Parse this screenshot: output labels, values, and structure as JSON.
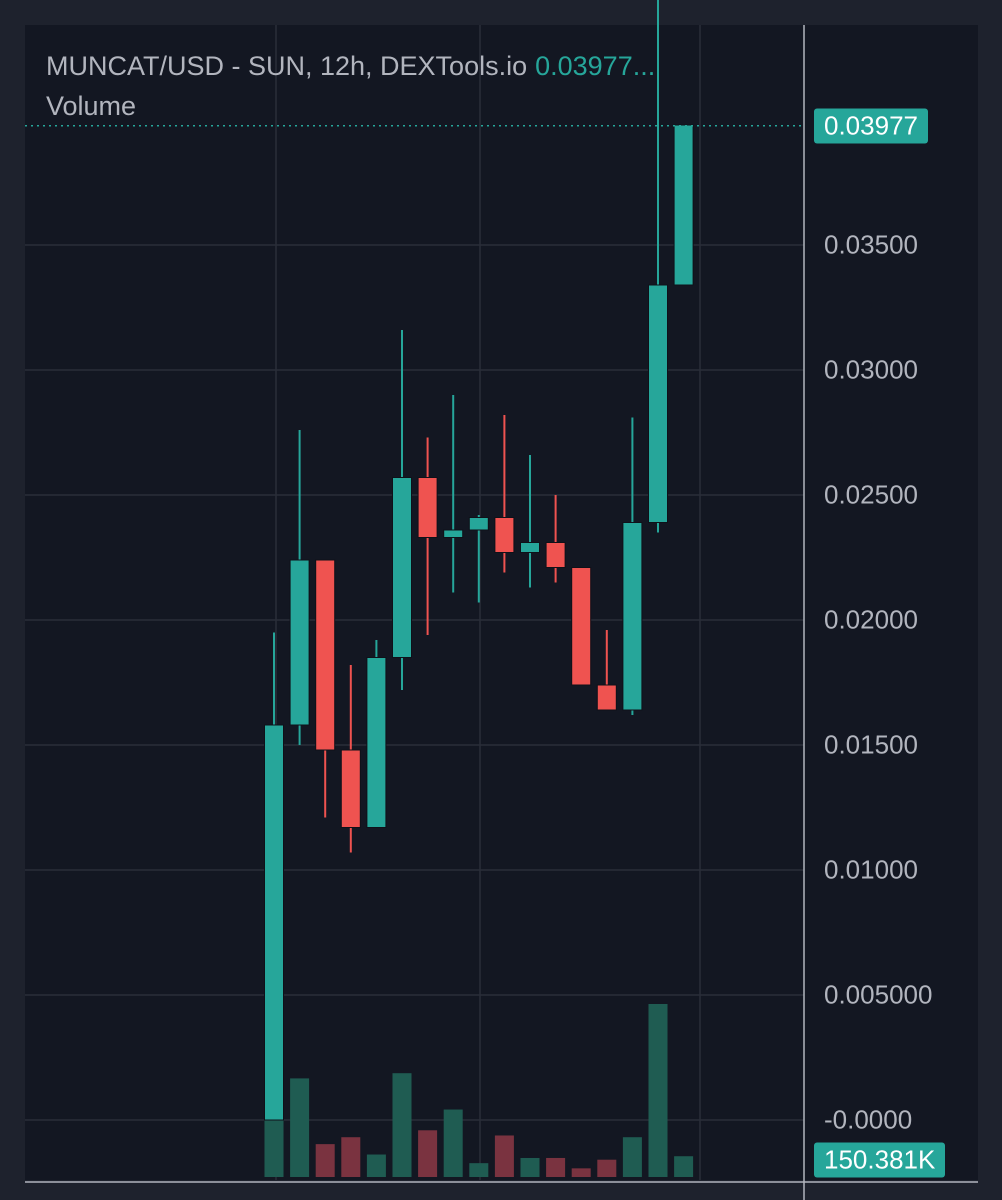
{
  "header": {
    "title": "MUNCAT/USD - SUN, 12h, DEXTools.io",
    "last_price_display": "0.03977...",
    "volume_label": "Volume"
  },
  "colors": {
    "background": "#131722",
    "frame": "#1e222d",
    "up": "#26a69a",
    "down": "#ef5350",
    "volume_up": "#1f5c52",
    "volume_down": "#7a3340",
    "grid": "#2a2e39",
    "text": "#b2b5be"
  },
  "price_badge": "0.03977",
  "volume_badge": "150.381K",
  "chart_data": {
    "type": "candlestick",
    "title": "MUNCAT/USD - SUN, 12h, DEXTools.io",
    "ylabel": "",
    "ylim": [
      -0.0012,
      0.0448
    ],
    "y_ticks": [
      {
        "value": 0.035,
        "label": "0.03500"
      },
      {
        "value": 0.03,
        "label": "0.03000"
      },
      {
        "value": 0.025,
        "label": "0.02500"
      },
      {
        "value": 0.02,
        "label": "0.02000"
      },
      {
        "value": 0.015,
        "label": "0.01500"
      },
      {
        "value": 0.01,
        "label": "0.01000"
      },
      {
        "value": 0.005,
        "label": "0.005000"
      },
      {
        "value": 0.0,
        "label": "-0.0000"
      }
    ],
    "last_price": 0.03977,
    "grid": true,
    "candles": [
      {
        "open": 0.0,
        "high": 0.0195,
        "low": 0.0,
        "close": 0.0158,
        "volume": 0.42
      },
      {
        "open": 0.0158,
        "high": 0.0276,
        "low": 0.015,
        "close": 0.0224,
        "volume": 0.57
      },
      {
        "open": 0.0224,
        "high": 0.0224,
        "low": 0.0121,
        "close": 0.0148,
        "volume": 0.19
      },
      {
        "open": 0.0148,
        "high": 0.0182,
        "low": 0.0107,
        "close": 0.0117,
        "volume": 0.23
      },
      {
        "open": 0.0117,
        "high": 0.0192,
        "low": 0.0117,
        "close": 0.0185,
        "volume": 0.13
      },
      {
        "open": 0.0185,
        "high": 0.0316,
        "low": 0.0172,
        "close": 0.0257,
        "volume": 0.6
      },
      {
        "open": 0.0257,
        "high": 0.0273,
        "low": 0.0194,
        "close": 0.0233,
        "volume": 0.27
      },
      {
        "open": 0.0233,
        "high": 0.029,
        "low": 0.0211,
        "close": 0.0236,
        "volume": 0.39
      },
      {
        "open": 0.0236,
        "high": 0.0242,
        "low": 0.0207,
        "close": 0.0241,
        "volume": 0.08
      },
      {
        "open": 0.0241,
        "high": 0.0282,
        "low": 0.0219,
        "close": 0.0227,
        "volume": 0.24
      },
      {
        "open": 0.0227,
        "high": 0.0266,
        "low": 0.0213,
        "close": 0.0231,
        "volume": 0.11
      },
      {
        "open": 0.0231,
        "high": 0.025,
        "low": 0.0215,
        "close": 0.0221,
        "volume": 0.11
      },
      {
        "open": 0.0221,
        "high": 0.0221,
        "low": 0.0174,
        "close": 0.0174,
        "volume": 0.05
      },
      {
        "open": 0.0174,
        "high": 0.0196,
        "low": 0.0164,
        "close": 0.0164,
        "volume": 0.1
      },
      {
        "open": 0.0164,
        "high": 0.0281,
        "low": 0.0162,
        "close": 0.0239,
        "volume": 0.23
      },
      {
        "open": 0.0239,
        "high": 0.0449,
        "low": 0.0235,
        "close": 0.0334,
        "volume": 1.0
      },
      {
        "open": 0.0334,
        "high": 0.0398,
        "low": 0.0334,
        "close": 0.0398,
        "volume": 0.12
      }
    ]
  }
}
